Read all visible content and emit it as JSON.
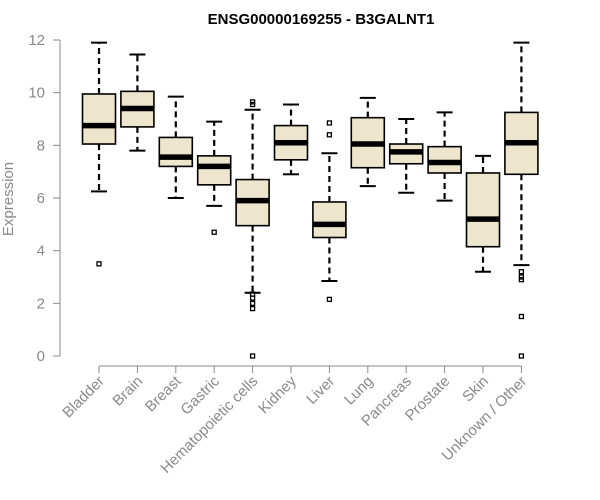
{
  "chart_data": {
    "type": "boxplot",
    "title": "ENSG00000169255 - B3GALNT1",
    "ylabel": "Expression",
    "xlabel": "",
    "ylim": [
      0,
      12
    ],
    "yticks": [
      0,
      2,
      4,
      6,
      8,
      10,
      12
    ],
    "grid": false,
    "colors": {
      "box_fill": "#ede6cd",
      "line": "#000000",
      "axis": "#8a8a8a"
    },
    "categories": [
      "Bladder",
      "Brain",
      "Breast",
      "Gastric",
      "Hematopoietic cells",
      "Kidney",
      "Liver",
      "Lung",
      "Pancreas",
      "Prostate",
      "Skin",
      "Unknown / Other"
    ],
    "boxes": [
      {
        "name": "Bladder",
        "whisker_low": 6.25,
        "q1": 8.05,
        "median": 8.75,
        "q3": 9.95,
        "whisker_high": 11.9,
        "outliers": [
          3.5
        ]
      },
      {
        "name": "Brain",
        "whisker_low": 7.8,
        "q1": 8.7,
        "median": 9.4,
        "q3": 10.05,
        "whisker_high": 11.45,
        "outliers": []
      },
      {
        "name": "Breast",
        "whisker_low": 6.0,
        "q1": 7.2,
        "median": 7.55,
        "q3": 8.3,
        "whisker_high": 9.85,
        "outliers": []
      },
      {
        "name": "Gastric",
        "whisker_low": 5.7,
        "q1": 6.5,
        "median": 7.2,
        "q3": 7.6,
        "whisker_high": 8.9,
        "outliers": [
          4.7
        ]
      },
      {
        "name": "Hematopoietic cells",
        "whisker_low": 2.4,
        "q1": 4.95,
        "median": 5.9,
        "q3": 6.7,
        "whisker_high": 9.35,
        "outliers": [
          9.55,
          9.65,
          2.35,
          2.2,
          2.0,
          1.8,
          0.0
        ]
      },
      {
        "name": "Kidney",
        "whisker_low": 6.9,
        "q1": 7.45,
        "median": 8.1,
        "q3": 8.75,
        "whisker_high": 9.55,
        "outliers": []
      },
      {
        "name": "Liver",
        "whisker_low": 2.85,
        "q1": 4.5,
        "median": 5.0,
        "q3": 5.85,
        "whisker_high": 7.7,
        "outliers": [
          8.4,
          8.85,
          2.15
        ]
      },
      {
        "name": "Lung",
        "whisker_low": 6.45,
        "q1": 7.15,
        "median": 8.05,
        "q3": 9.05,
        "whisker_high": 9.8,
        "outliers": []
      },
      {
        "name": "Pancreas",
        "whisker_low": 6.2,
        "q1": 7.3,
        "median": 7.75,
        "q3": 8.05,
        "whisker_high": 9.0,
        "outliers": []
      },
      {
        "name": "Prostate",
        "whisker_low": 5.9,
        "q1": 6.95,
        "median": 7.35,
        "q3": 7.95,
        "whisker_high": 9.25,
        "outliers": []
      },
      {
        "name": "Skin",
        "whisker_low": 3.2,
        "q1": 4.15,
        "median": 5.2,
        "q3": 6.95,
        "whisker_high": 7.6,
        "outliers": []
      },
      {
        "name": "Unknown / Other",
        "whisker_low": 3.45,
        "q1": 6.9,
        "median": 8.1,
        "q3": 9.25,
        "whisker_high": 11.9,
        "outliers": [
          3.2,
          3.0,
          2.9,
          1.5,
          0.0
        ]
      }
    ]
  }
}
